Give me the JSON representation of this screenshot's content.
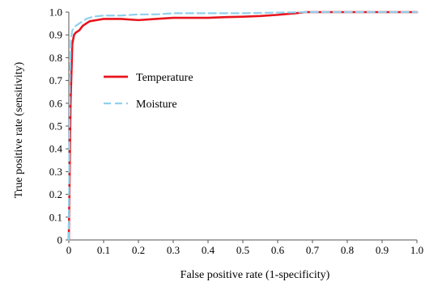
{
  "chart_data": {
    "type": "line",
    "xlabel": "False positive rate (1-specificity)",
    "ylabel": "True positive rate (sensitivity)",
    "xlim": [
      0,
      1.0
    ],
    "ylim": [
      0,
      1.0
    ],
    "x_ticks": [
      "0",
      "0.1",
      "0.2",
      "0.3",
      "0.4",
      "0.5",
      "0.6",
      "0.7",
      "0.8",
      "0.9",
      "1.0"
    ],
    "y_ticks": [
      "0",
      "0.1",
      "0.2",
      "0.3",
      "0.4",
      "0.5",
      "0.6",
      "0.7",
      "0.8",
      "0.9",
      "1.0"
    ],
    "grid": false,
    "legend_position": "left",
    "series": [
      {
        "name": "Temperature",
        "color": "#e8141c",
        "style": "solid",
        "points": [
          [
            0,
            0
          ],
          [
            0.005,
            0.6
          ],
          [
            0.01,
            0.86
          ],
          [
            0.015,
            0.9
          ],
          [
            0.02,
            0.91
          ],
          [
            0.03,
            0.92
          ],
          [
            0.04,
            0.94
          ],
          [
            0.05,
            0.95
          ],
          [
            0.06,
            0.96
          ],
          [
            0.08,
            0.965
          ],
          [
            0.1,
            0.97
          ],
          [
            0.15,
            0.97
          ],
          [
            0.2,
            0.965
          ],
          [
            0.25,
            0.97
          ],
          [
            0.3,
            0.975
          ],
          [
            0.35,
            0.975
          ],
          [
            0.4,
            0.975
          ],
          [
            0.45,
            0.978
          ],
          [
            0.5,
            0.98
          ],
          [
            0.55,
            0.983
          ],
          [
            0.6,
            0.988
          ],
          [
            0.65,
            0.995
          ],
          [
            0.68,
            1.0
          ],
          [
            0.75,
            1.0
          ],
          [
            0.85,
            1.0
          ],
          [
            1.0,
            1.0
          ]
        ]
      },
      {
        "name": "Moisture",
        "color": "#8fd0ee",
        "style": "dashed",
        "points": [
          [
            0,
            0
          ],
          [
            0.003,
            0.7
          ],
          [
            0.006,
            0.88
          ],
          [
            0.01,
            0.92
          ],
          [
            0.015,
            0.93
          ],
          [
            0.02,
            0.94
          ],
          [
            0.03,
            0.95
          ],
          [
            0.05,
            0.97
          ],
          [
            0.07,
            0.98
          ],
          [
            0.1,
            0.985
          ],
          [
            0.15,
            0.985
          ],
          [
            0.2,
            0.99
          ],
          [
            0.25,
            0.99
          ],
          [
            0.3,
            0.995
          ],
          [
            0.4,
            0.995
          ],
          [
            0.5,
            0.995
          ],
          [
            0.6,
            0.998
          ],
          [
            0.7,
            1.0
          ],
          [
            0.8,
            1.0
          ],
          [
            0.9,
            1.0
          ],
          [
            1.0,
            1.0
          ]
        ]
      }
    ]
  }
}
